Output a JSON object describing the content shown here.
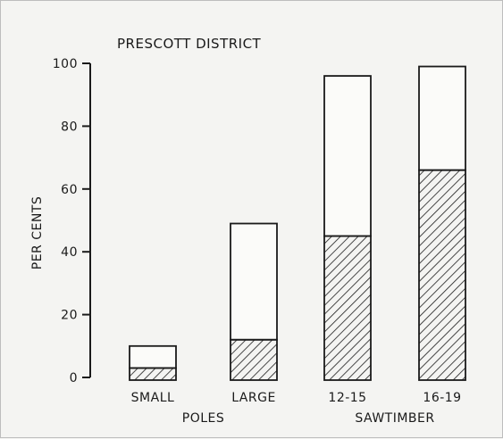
{
  "chart_data": {
    "type": "bar",
    "title": "PRESCOTT DISTRICT",
    "ylabel": "PER CENTS",
    "xlabel": "",
    "ylim": [
      0,
      100
    ],
    "yticks": [
      "0",
      "20",
      "40",
      "60",
      "80",
      "100"
    ],
    "categories": [
      "SMALL",
      "LARGE",
      "12-15",
      "16-19"
    ],
    "groups": [
      {
        "label": "POLES",
        "categories": [
          "SMALL",
          "LARGE"
        ]
      },
      {
        "label": "SAWTIMBER",
        "categories": [
          "12-15",
          "16-19"
        ]
      }
    ],
    "series": [
      {
        "pattern": "hatched",
        "values": [
          3,
          12,
          45,
          66
        ]
      },
      {
        "pattern": "open",
        "values": [
          10,
          49,
          96,
          99
        ]
      }
    ],
    "grid": false,
    "colors": {
      "ink": "#1a1a1a",
      "paper": "#f4f4f2"
    }
  }
}
